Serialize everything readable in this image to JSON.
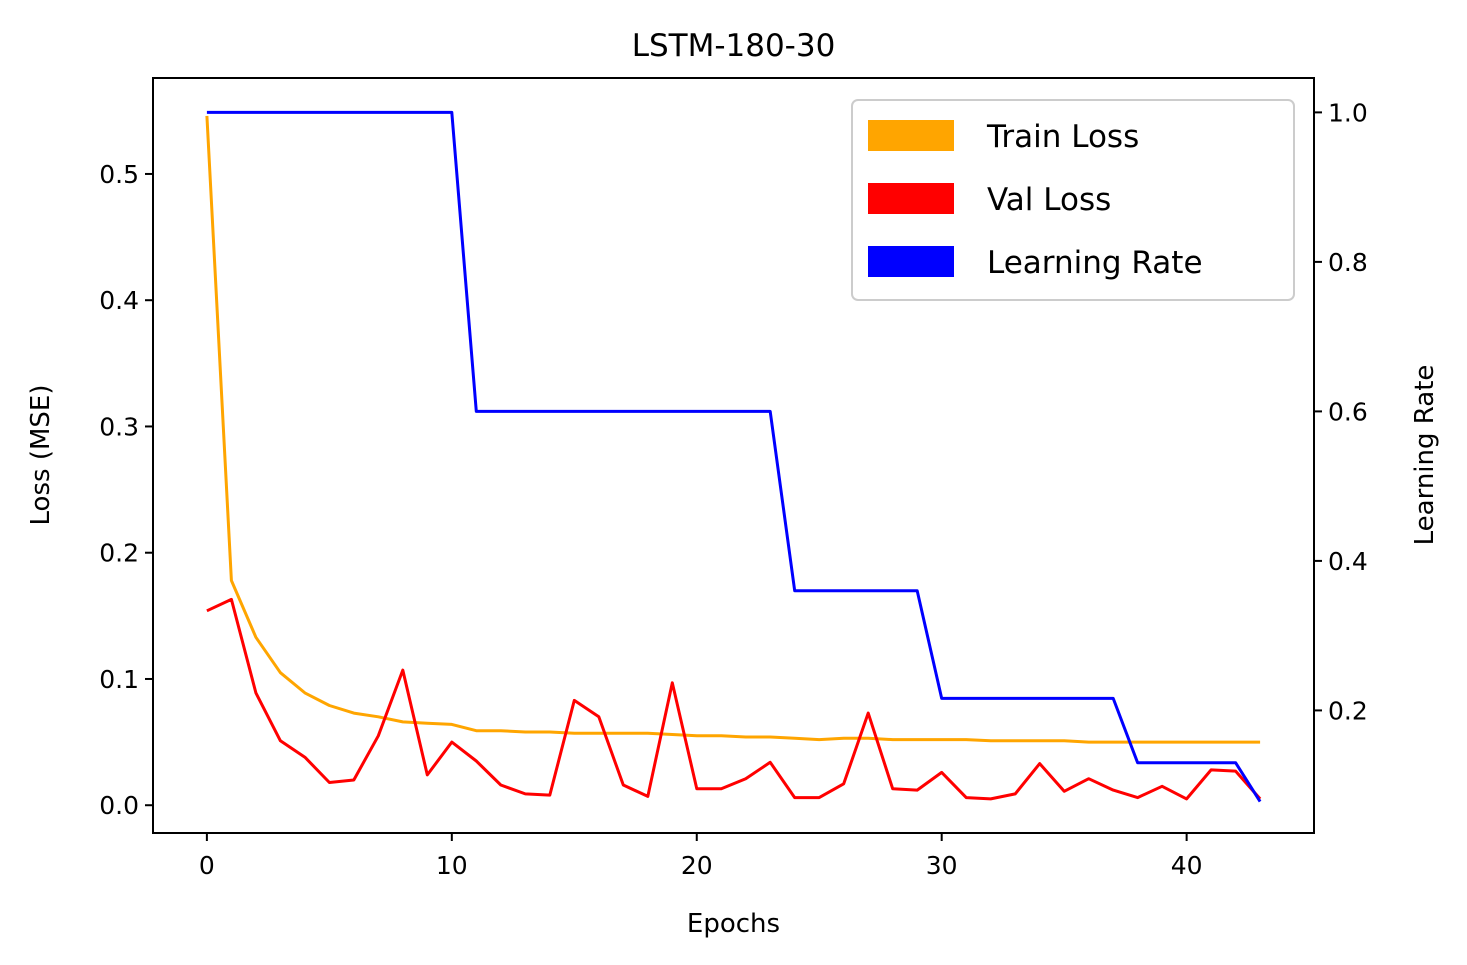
{
  "chart_data": {
    "type": "line",
    "title": "LSTM-180-30",
    "xlabel": "Epochs",
    "ylabel": "Loss (MSE)",
    "y2label": "Learning Rate",
    "xlim": [
      -2.2,
      45.2
    ],
    "ylim": [
      -0.022,
      0.576
    ],
    "y2lim": [
      0.036,
      1.046
    ],
    "xticks": [
      0,
      10,
      20,
      30,
      40
    ],
    "yticks": [
      0.0,
      0.1,
      0.2,
      0.3,
      0.4,
      0.5
    ],
    "y2ticks": [
      0.2,
      0.4,
      0.6,
      0.8,
      1.0
    ],
    "xtick_labels": [
      "0",
      "10",
      "20",
      "30",
      "40"
    ],
    "ytick_labels": [
      "0.0",
      "0.1",
      "0.2",
      "0.3",
      "0.4",
      "0.5"
    ],
    "y2tick_labels": [
      "0.2",
      "0.4",
      "0.6",
      "0.8",
      "1.0"
    ],
    "legend_position": "top-right",
    "grid": false,
    "x": [
      0,
      1,
      2,
      3,
      4,
      5,
      6,
      7,
      8,
      9,
      10,
      11,
      12,
      13,
      14,
      15,
      16,
      17,
      18,
      19,
      20,
      21,
      22,
      23,
      24,
      25,
      26,
      27,
      28,
      29,
      30,
      31,
      32,
      33,
      34,
      35,
      36,
      37,
      38,
      39,
      40,
      41,
      42,
      43
    ],
    "series": [
      {
        "name": "Train Loss",
        "axis": "left",
        "color": "#ffa500",
        "values": [
          0.546,
          0.178,
          0.133,
          0.105,
          0.089,
          0.079,
          0.073,
          0.07,
          0.066,
          0.065,
          0.064,
          0.059,
          0.059,
          0.058,
          0.058,
          0.057,
          0.057,
          0.057,
          0.057,
          0.056,
          0.055,
          0.055,
          0.054,
          0.054,
          0.053,
          0.052,
          0.053,
          0.053,
          0.052,
          0.052,
          0.052,
          0.052,
          0.051,
          0.051,
          0.051,
          0.051,
          0.05,
          0.05,
          0.05,
          0.05,
          0.05,
          0.05,
          0.05,
          0.05
        ]
      },
      {
        "name": "Val Loss",
        "axis": "left",
        "color": "#ff0000",
        "values": [
          0.154,
          0.163,
          0.089,
          0.051,
          0.038,
          0.018,
          0.02,
          0.055,
          0.107,
          0.024,
          0.05,
          0.035,
          0.016,
          0.009,
          0.008,
          0.083,
          0.07,
          0.016,
          0.007,
          0.097,
          0.013,
          0.013,
          0.021,
          0.034,
          0.006,
          0.006,
          0.017,
          0.073,
          0.013,
          0.012,
          0.026,
          0.006,
          0.005,
          0.009,
          0.033,
          0.011,
          0.021,
          0.012,
          0.006,
          0.015,
          0.005,
          0.028,
          0.027,
          0.005
        ]
      },
      {
        "name": "Learning Rate",
        "axis": "right",
        "color": "#0000ff",
        "values": [
          1.0,
          1.0,
          1.0,
          1.0,
          1.0,
          1.0,
          1.0,
          1.0,
          1.0,
          1.0,
          1.0,
          0.6,
          0.6,
          0.6,
          0.6,
          0.6,
          0.6,
          0.6,
          0.6,
          0.6,
          0.6,
          0.6,
          0.6,
          0.6,
          0.36,
          0.36,
          0.36,
          0.36,
          0.36,
          0.36,
          0.216,
          0.216,
          0.216,
          0.216,
          0.216,
          0.216,
          0.216,
          0.216,
          0.13,
          0.13,
          0.13,
          0.13,
          0.13,
          0.078
        ]
      }
    ]
  }
}
